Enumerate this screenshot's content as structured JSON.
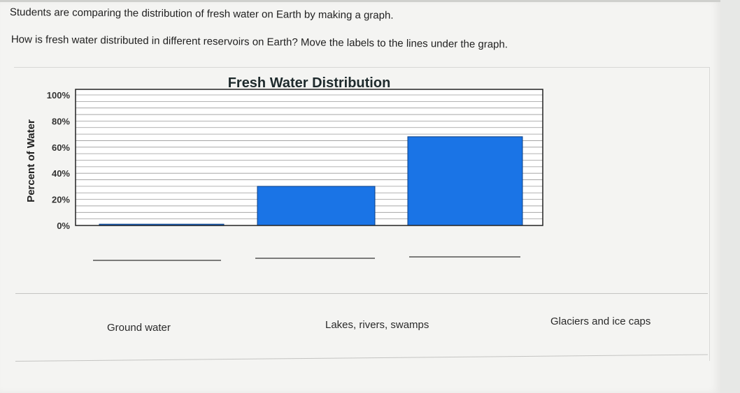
{
  "prompt": "Students are comparing the distribution of fresh water on Earth by making a graph.",
  "question": "How is fresh water distributed in different reservoirs on Earth? Move the labels to the lines under the graph.",
  "chart_data": {
    "type": "bar",
    "title": "Fresh Water Distribution",
    "ylabel": "Percent of Water",
    "xlabel": "",
    "ylim": [
      0,
      100
    ],
    "yticks": [
      "0%",
      "20%",
      "40%",
      "60%",
      "80%",
      "100%"
    ],
    "yticks_values": [
      0,
      20,
      40,
      60,
      80,
      100
    ],
    "categories": [
      "",
      "",
      ""
    ],
    "values": [
      1,
      30,
      68
    ],
    "bar_color": "#1a74e6",
    "grid": true
  },
  "answer_blanks": [
    "",
    "",
    ""
  ],
  "draggable_labels": [
    "Ground water",
    "Lakes, rivers, swamps",
    "Glaciers and ice caps"
  ]
}
